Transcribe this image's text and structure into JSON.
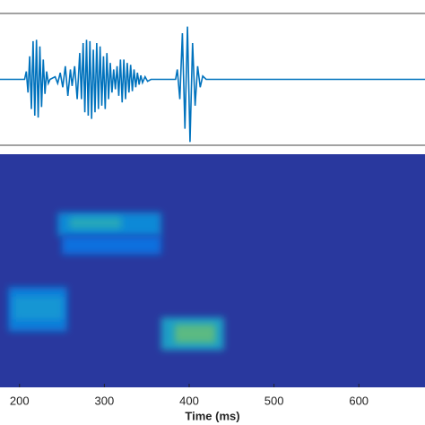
{
  "chart_data": [
    {
      "type": "line",
      "color": "#0072bd",
      "xlim": [
        177,
        678
      ],
      "ylim": [
        -1,
        1
      ],
      "x": [
        177,
        206,
        208,
        210,
        212,
        214,
        216,
        218,
        220,
        222,
        224,
        226,
        228,
        230,
        232,
        234,
        236,
        242,
        245,
        248,
        251,
        254,
        257,
        260,
        262,
        265,
        268,
        271,
        273,
        275,
        277,
        279,
        281,
        283,
        285,
        287,
        289,
        291,
        293,
        295,
        297,
        299,
        301,
        303,
        305,
        307,
        309,
        311,
        313,
        315,
        317,
        319,
        321,
        323,
        325,
        327,
        329,
        331,
        333,
        335,
        337,
        339,
        341,
        343,
        345,
        348,
        351,
        355,
        384,
        386,
        389,
        392,
        395,
        398,
        401,
        404,
        407,
        410,
        413,
        416,
        420,
        678
      ],
      "values": [
        0,
        0,
        0.12,
        -0.2,
        0.35,
        -0.45,
        0.58,
        -0.55,
        0.6,
        -0.58,
        0.5,
        -0.42,
        0.3,
        -0.22,
        0.12,
        -0.06,
        0,
        0.04,
        -0.06,
        0.1,
        -0.12,
        0.2,
        -0.25,
        0.15,
        -0.1,
        0.2,
        -0.3,
        0.4,
        -0.3,
        0.55,
        -0.5,
        0.6,
        -0.55,
        0.58,
        -0.6,
        0.45,
        -0.5,
        0.55,
        -0.45,
        0.5,
        -0.4,
        0.35,
        -0.45,
        0.4,
        -0.3,
        0.25,
        -0.2,
        0.15,
        -0.15,
        0.2,
        -0.25,
        0.3,
        -0.35,
        0.3,
        -0.3,
        0.25,
        -0.2,
        0.22,
        -0.18,
        0.15,
        -0.12,
        0.1,
        -0.08,
        0.06,
        -0.05,
        0.04,
        -0.03,
        0,
        0,
        0.15,
        -0.3,
        0.7,
        -0.75,
        0.8,
        -0.95,
        0.55,
        -0.4,
        0.2,
        -0.12,
        0.05,
        0,
        0
      ]
    },
    {
      "type": "heatmap",
      "xlim": [
        177,
        678
      ],
      "ylim": [
        0,
        1
      ],
      "xticks": [
        200,
        300,
        400,
        500,
        600
      ],
      "xlabel": "Time (ms)",
      "background": 0.05,
      "colormap": [
        "#352a87",
        "#0363e1",
        "#1496d3",
        "#38b99e",
        "#c2bc2c",
        "#f9fb0e"
      ],
      "cells": [
        {
          "x": [
            187,
            256
          ],
          "y": [
            0.24,
            0.43
          ],
          "value": 0.3
        },
        {
          "x": [
            193,
            251
          ],
          "y": [
            0.29,
            0.39
          ],
          "value": 0.4
        },
        {
          "x": [
            245,
            367
          ],
          "y": [
            0.65,
            0.75
          ],
          "value": 0.35
        },
        {
          "x": [
            259,
            320
          ],
          "y": [
            0.68,
            0.73
          ],
          "value": 0.5
        },
        {
          "x": [
            250,
            367
          ],
          "y": [
            0.57,
            0.65
          ],
          "value": 0.25
        },
        {
          "x": [
            367,
            441
          ],
          "y": [
            0.16,
            0.3
          ],
          "value": 0.45
        },
        {
          "x": [
            383,
            431
          ],
          "y": [
            0.19,
            0.27
          ],
          "value": 0.65
        }
      ]
    }
  ]
}
